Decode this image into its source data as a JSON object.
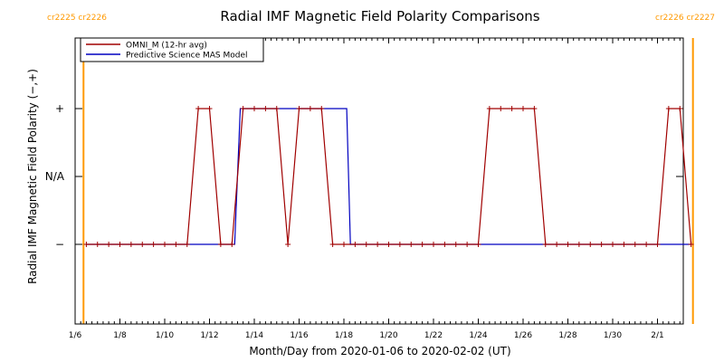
{
  "chart_data": {
    "type": "line",
    "title": "Radial IMF Magnetic Field Polarity Comparisons",
    "xlabel": "Month/Day from 2020-01-06 to 2020-02-02 (UT)",
    "ylabel": "Radial IMF Magnetic Field Polarity (−,+)",
    "x_ticks": [
      "1/6",
      "1/8",
      "1/10",
      "1/12",
      "1/14",
      "1/16",
      "1/18",
      "1/20",
      "1/22",
      "1/24",
      "1/26",
      "1/28",
      "1/30",
      "2/1"
    ],
    "y_ticks": [
      "+",
      "N/A",
      "−"
    ],
    "legend": {
      "position": "top-left"
    },
    "carrington_markers": [
      {
        "label": "cr2225 cr2226",
        "x": "2020-01-06T09:00",
        "side": "left"
      },
      {
        "label": "cr2226 cr2227",
        "x": "2020-02-02T14:00",
        "side": "right"
      }
    ],
    "series": [
      {
        "name": "OMNI_M (12-hr avg)",
        "color": "#a00000",
        "markers": true,
        "points": [
          [
            "2020-01-06T12:00",
            "−"
          ],
          [
            "2020-01-07T00:00",
            "−"
          ],
          [
            "2020-01-07T12:00",
            "−"
          ],
          [
            "2020-01-08T00:00",
            "−"
          ],
          [
            "2020-01-08T12:00",
            "−"
          ],
          [
            "2020-01-09T00:00",
            "−"
          ],
          [
            "2020-01-09T12:00",
            "−"
          ],
          [
            "2020-01-10T00:00",
            "−"
          ],
          [
            "2020-01-10T12:00",
            "−"
          ],
          [
            "2020-01-11T00:00",
            "−"
          ],
          [
            "2020-01-11T12:00",
            "+"
          ],
          [
            "2020-01-12T00:00",
            "+"
          ],
          [
            "2020-01-12T12:00",
            "−"
          ],
          [
            "2020-01-13T00:00",
            "−"
          ],
          [
            "2020-01-13T12:00",
            "+"
          ],
          [
            "2020-01-14T00:00",
            "+"
          ],
          [
            "2020-01-14T12:00",
            "+"
          ],
          [
            "2020-01-15T00:00",
            "+"
          ],
          [
            "2020-01-15T12:00",
            "−"
          ],
          [
            "2020-01-16T00:00",
            "+"
          ],
          [
            "2020-01-16T12:00",
            "+"
          ],
          [
            "2020-01-17T00:00",
            "+"
          ],
          [
            "2020-01-17T12:00",
            "−"
          ],
          [
            "2020-01-18T00:00",
            "−"
          ],
          [
            "2020-01-18T12:00",
            "−"
          ],
          [
            "2020-01-19T00:00",
            "−"
          ],
          [
            "2020-01-19T12:00",
            "−"
          ],
          [
            "2020-01-20T00:00",
            "−"
          ],
          [
            "2020-01-20T12:00",
            "−"
          ],
          [
            "2020-01-21T00:00",
            "−"
          ],
          [
            "2020-01-21T12:00",
            "−"
          ],
          [
            "2020-01-22T00:00",
            "−"
          ],
          [
            "2020-01-22T12:00",
            "−"
          ],
          [
            "2020-01-23T00:00",
            "−"
          ],
          [
            "2020-01-23T12:00",
            "−"
          ],
          [
            "2020-01-24T00:00",
            "−"
          ],
          [
            "2020-01-24T12:00",
            "+"
          ],
          [
            "2020-01-25T00:00",
            "+"
          ],
          [
            "2020-01-25T12:00",
            "+"
          ],
          [
            "2020-01-26T00:00",
            "+"
          ],
          [
            "2020-01-26T12:00",
            "+"
          ],
          [
            "2020-01-27T00:00",
            "−"
          ],
          [
            "2020-01-27T12:00",
            "−"
          ],
          [
            "2020-01-28T00:00",
            "−"
          ],
          [
            "2020-01-28T12:00",
            "−"
          ],
          [
            "2020-01-29T00:00",
            "−"
          ],
          [
            "2020-01-29T12:00",
            "−"
          ],
          [
            "2020-01-30T00:00",
            "−"
          ],
          [
            "2020-01-30T12:00",
            "−"
          ],
          [
            "2020-01-31T00:00",
            "−"
          ],
          [
            "2020-01-31T12:00",
            "−"
          ],
          [
            "2020-02-01T00:00",
            "−"
          ],
          [
            "2020-02-01T12:00",
            "+"
          ],
          [
            "2020-02-02T00:00",
            "+"
          ],
          [
            "2020-02-02T12:00",
            "−"
          ]
        ]
      },
      {
        "name": "Predictive Science MAS Model",
        "color": "#0000c0",
        "markers": false,
        "points": [
          [
            "2020-01-06T12:00",
            "−"
          ],
          [
            "2020-01-13T03:00",
            "−"
          ],
          [
            "2020-01-13T09:00",
            "+"
          ],
          [
            "2020-01-18T03:00",
            "+"
          ],
          [
            "2020-01-18T07:00",
            "−"
          ],
          [
            "2020-02-02T12:00",
            "−"
          ]
        ]
      }
    ]
  }
}
